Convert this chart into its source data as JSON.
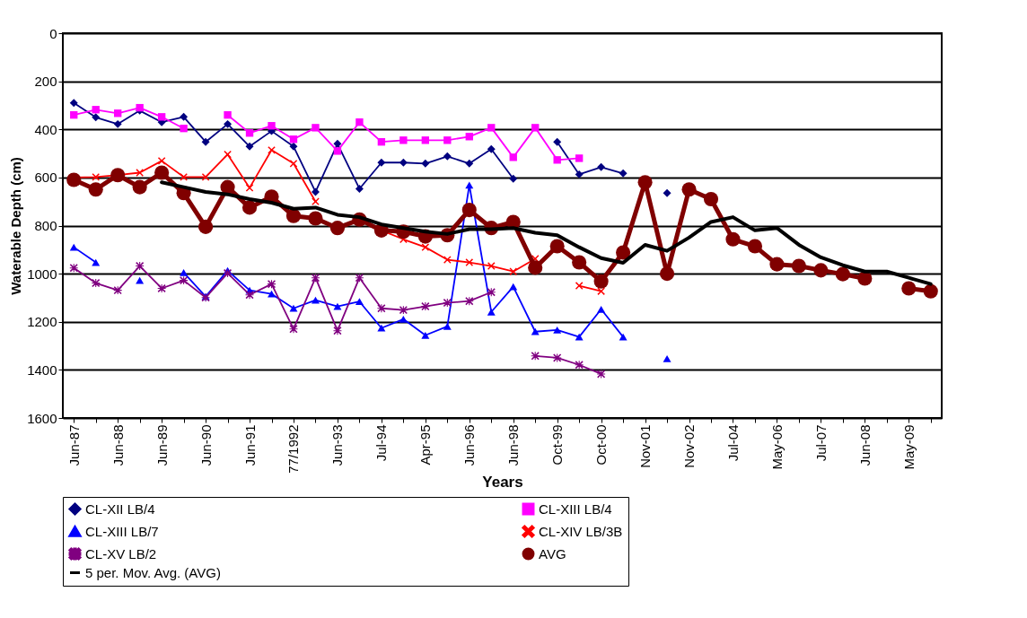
{
  "chart_data": {
    "type": "line",
    "xlabel": "Years",
    "ylabel": "Waterable Depth (cm)",
    "categories": [
      "Jun-87",
      null,
      "Jun-88",
      null,
      "Jun-89",
      null,
      "Jun-90",
      null,
      "Jun-91",
      null,
      "77/1992",
      null,
      "Jun-93",
      null,
      "Jul-94",
      null,
      "Apr-95",
      null,
      "Jun-96",
      null,
      "Jun-98",
      null,
      "Oct-99",
      null,
      "Oct-00",
      null,
      "Nov-01",
      null,
      "Nov-02",
      null,
      "Jul-04",
      null,
      "May-06",
      null,
      "Jul-07",
      null,
      "Jun-08",
      null,
      "May-09",
      null
    ],
    "ylim": [
      1600,
      0
    ],
    "yticks": [
      0,
      200,
      400,
      600,
      800,
      1000,
      1200,
      1400,
      1600
    ],
    "grid": "y",
    "legend": "bottom",
    "line_style": "solid",
    "series": [
      {
        "name": "CL-XII LB/4",
        "color": "#000080",
        "marker": "diamond",
        "values": [
          290,
          350,
          378,
          322,
          370,
          348,
          452,
          378,
          471,
          407,
          471,
          660,
          460,
          647,
          538,
          538,
          542,
          512,
          542,
          482,
          605,
          null,
          452,
          587,
          557,
          583,
          null,
          665,
          null,
          null,
          null,
          null,
          null,
          null,
          null,
          null,
          null,
          null,
          null,
          null
        ]
      },
      {
        "name": "CL-XIII LB/4",
        "color": "#ff00ff",
        "marker": "square",
        "values": [
          340,
          318,
          333,
          310,
          348,
          396,
          null,
          340,
          415,
          385,
          441,
          393,
          490,
          370,
          452,
          445,
          445,
          445,
          430,
          393,
          516,
          393,
          527,
          520,
          null,
          null,
          null,
          null,
          null,
          null,
          null,
          null,
          null,
          null,
          null,
          null,
          null,
          null,
          null,
          null
        ]
      },
      {
        "name": "CL-XIII LB/7",
        "color": "#0000ff",
        "marker": "triangle",
        "values": [
          890,
          953,
          null,
          1028,
          null,
          995,
          1095,
          987,
          1069,
          1084,
          1144,
          1110,
          1136,
          1116,
          1226,
          1189,
          1256,
          1219,
          632,
          1159,
          1054,
          1241,
          1234,
          1263,
          1148,
          1263,
          null,
          1353,
          null,
          null,
          null,
          null,
          null,
          null,
          null,
          null,
          null,
          null,
          null,
          null
        ]
      },
      {
        "name": "CL-XIV LB/3B",
        "color": "#ff0000",
        "marker": "cross",
        "values": [
          600,
          598,
          590,
          580,
          531,
          598,
          598,
          504,
          643,
          486,
          542,
          700,
          null,
          780,
          820,
          857,
          890,
          942,
          953,
          968,
          991,
          938,
          null,
          1050,
          1073,
          null,
          null,
          null,
          null,
          null,
          null,
          null,
          null,
          null,
          null,
          null,
          null,
          null,
          null,
          null
        ]
      },
      {
        "name": "CL-XV LB/2",
        "color": "#800080",
        "marker": "star",
        "values": [
          976,
          1039,
          1069,
          968,
          1061,
          1028,
          1099,
          998,
          1088,
          1043,
          1230,
          1017,
          1237,
          1017,
          1144,
          1151,
          1136,
          1121,
          1114,
          1077,
          null,
          1342,
          1350,
          1379,
          1417,
          null,
          null,
          null,
          null,
          null,
          null,
          null,
          null,
          null,
          null,
          null,
          null,
          null,
          null,
          null
        ]
      },
      {
        "name": "AVG",
        "color": "#800000",
        "marker": "circle",
        "values": [
          610,
          650,
          590,
          640,
          580,
          665,
          805,
          640,
          725,
          680,
          760,
          770,
          810,
          775,
          820,
          825,
          845,
          840,
          735,
          810,
          785,
          975,
          886,
          953,
          1032,
          912,
          620,
          1000,
          650,
          690,
          857,
          886,
          961,
          968,
          986,
          1002,
          1020,
          null,
          1061,
          1073
        ]
      },
      {
        "name": "5 per. Mov. Avg. (AVG)",
        "color": "#000000",
        "marker": "none",
        "values": [
          null,
          null,
          null,
          null,
          620,
          640,
          660,
          670,
          690,
          705,
          730,
          725,
          755,
          765,
          795,
          810,
          825,
          835,
          815,
          815,
          810,
          830,
          840,
          890,
          935,
          955,
          880,
          905,
          850,
          785,
          765,
          820,
          810,
          880,
          932,
          965,
          991,
          991,
          1017,
          1043
        ]
      }
    ]
  }
}
